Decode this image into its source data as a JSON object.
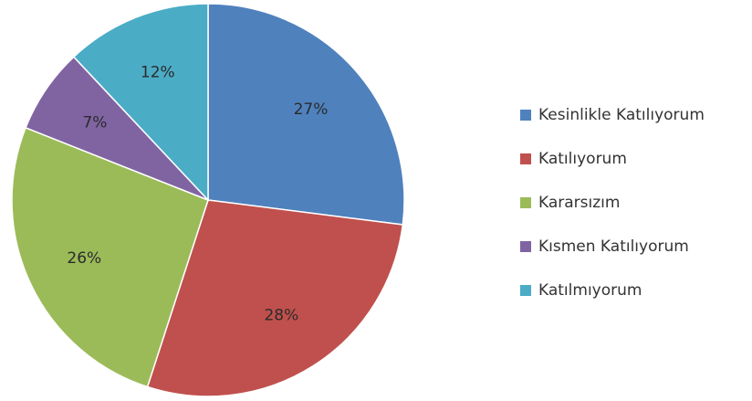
{
  "chart_data": {
    "type": "pie",
    "title": "",
    "legend_position": "right",
    "slices": [
      {
        "label": "Kesinlikle Katılıyorum",
        "value": 27,
        "display": "27%",
        "color": "#4f81bd"
      },
      {
        "label": "Katılıyorum",
        "value": 28,
        "display": "28%",
        "color": "#c0504d"
      },
      {
        "label": "Kararsızım",
        "value": 26,
        "display": "26%",
        "color": "#9bbb59"
      },
      {
        "label": "Kısmen Katılıyorum",
        "value": 7,
        "display": "7%",
        "color": "#8064a2"
      },
      {
        "label": "Katılmıyorum",
        "value": 12,
        "display": "12%",
        "color": "#4bacc6"
      }
    ]
  }
}
